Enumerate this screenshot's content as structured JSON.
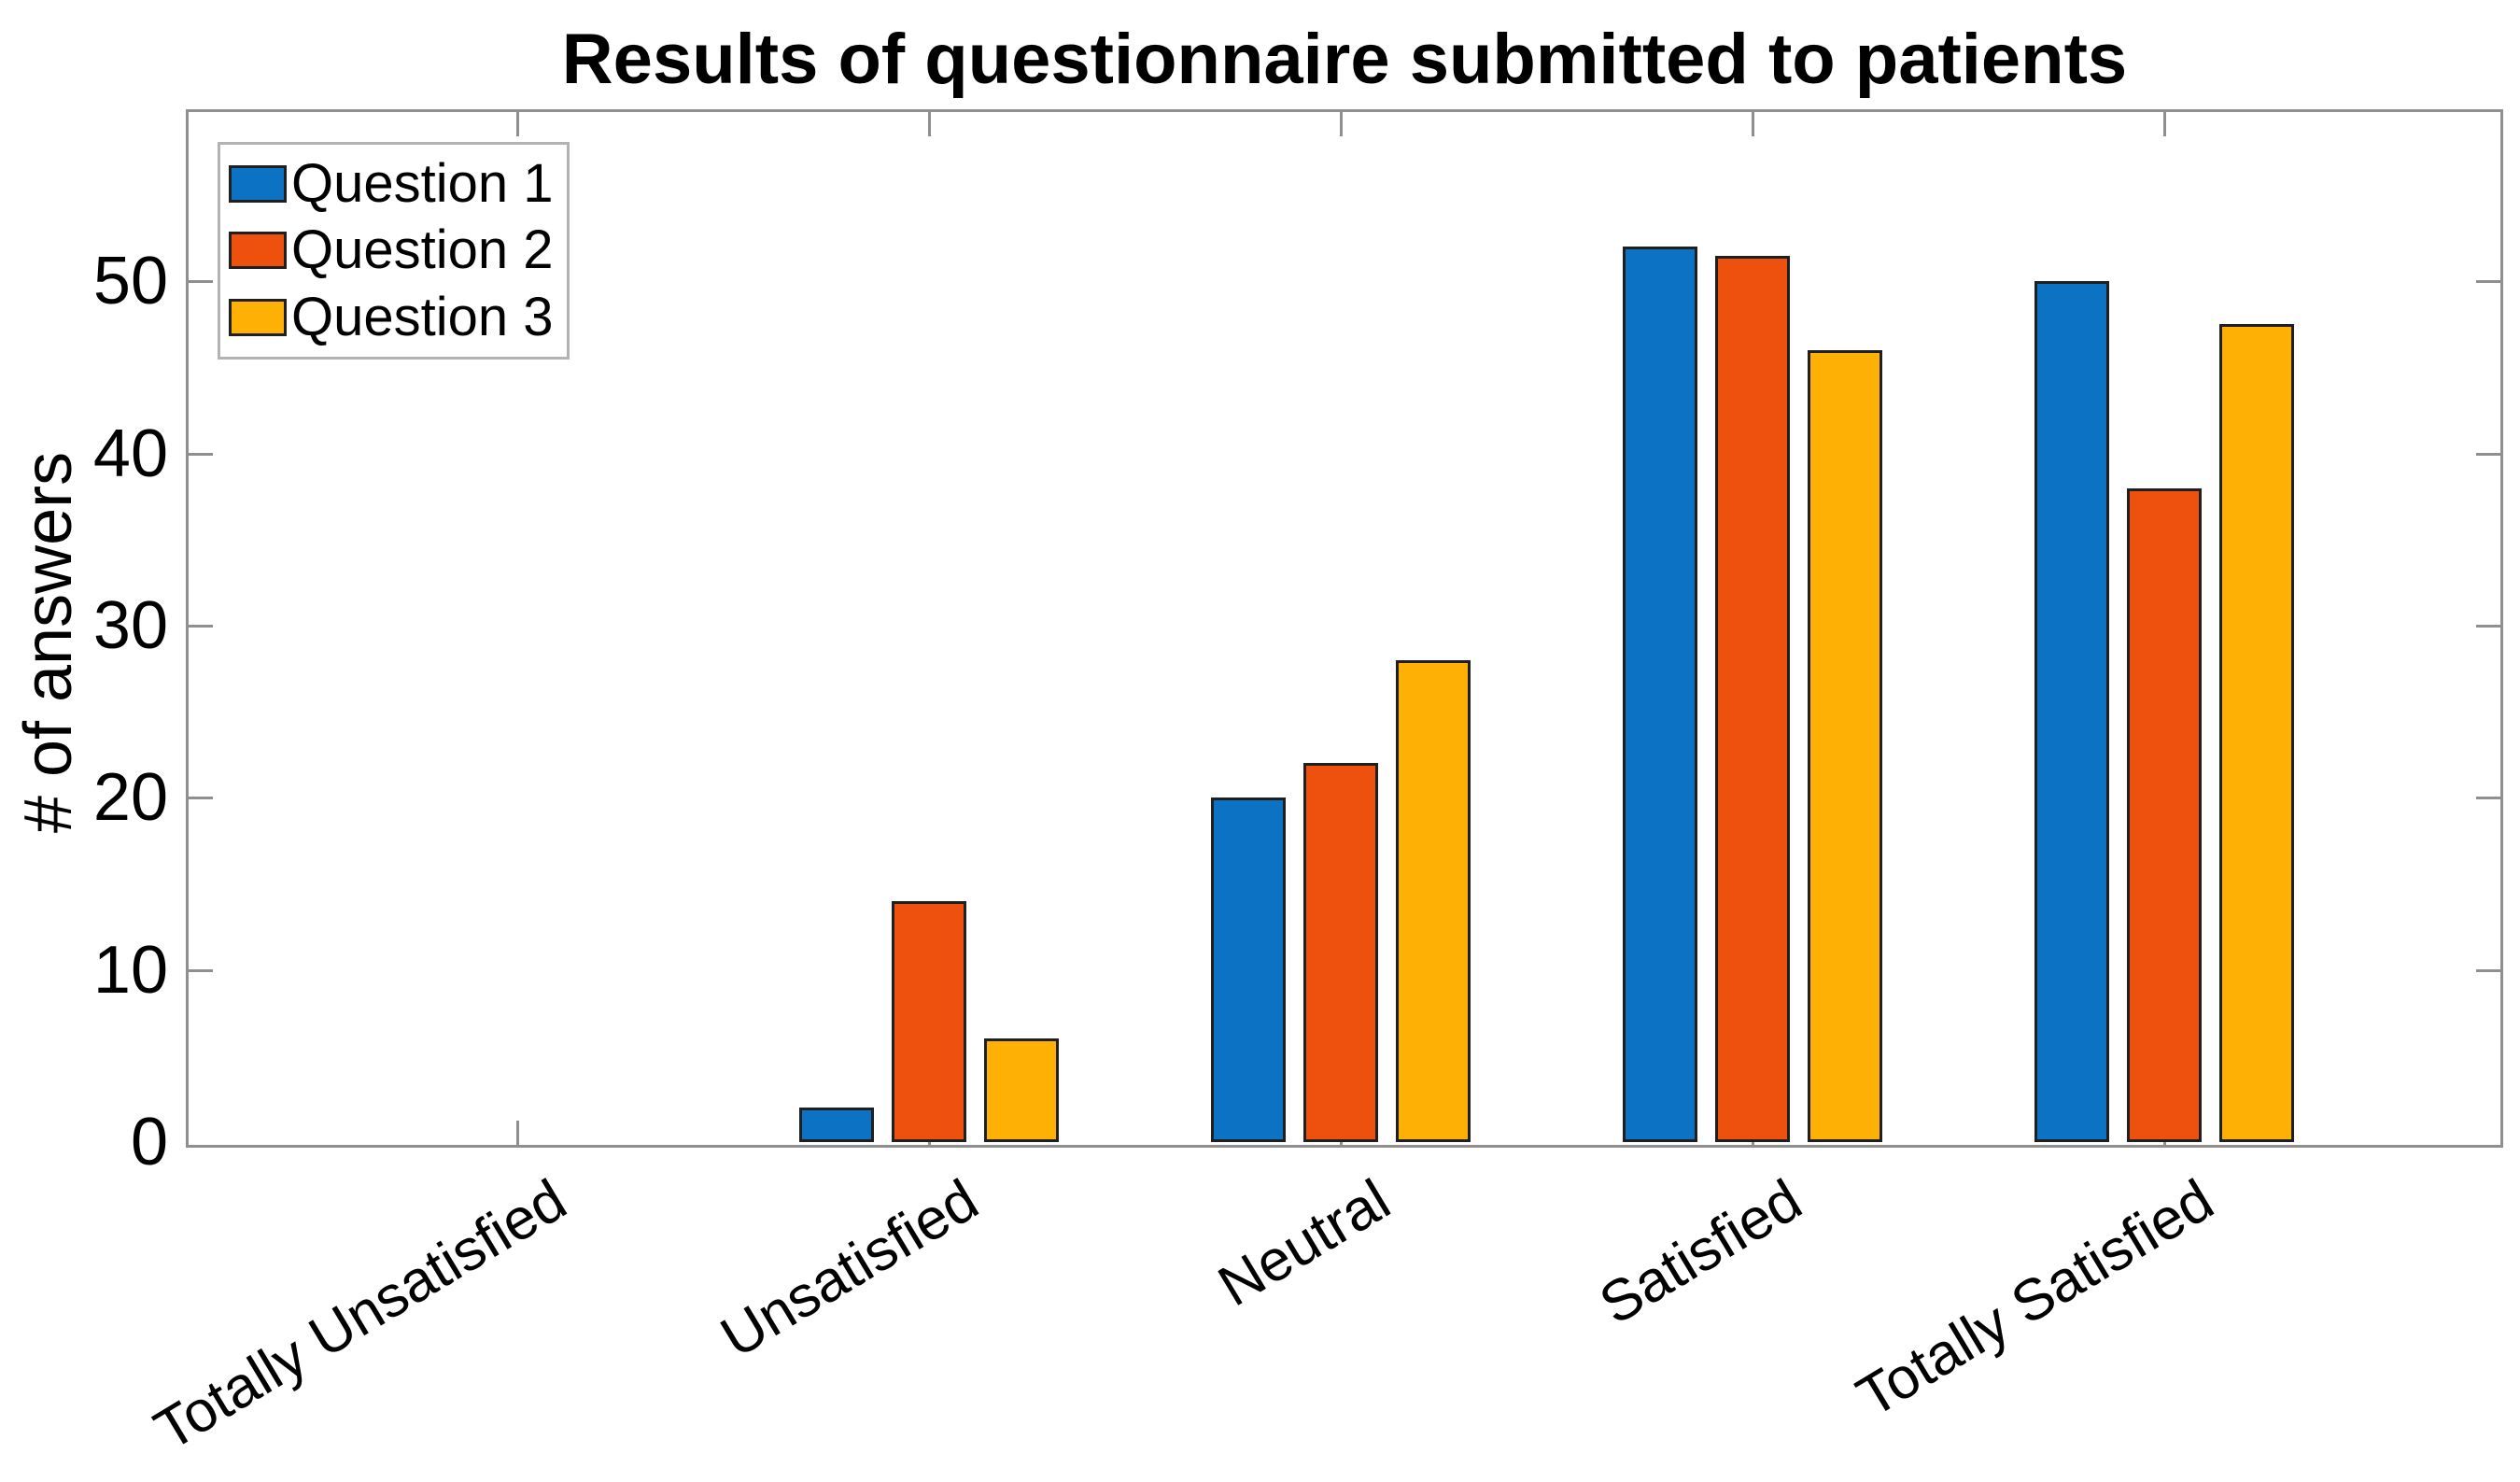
{
  "chart_data": {
    "type": "bar",
    "title": "Results of questionnaire submitted to patients",
    "xlabel": "",
    "ylabel": "# of answers",
    "categories": [
      "Totally Unsatisfied",
      "Unsatisfied",
      "Neutral",
      "Satisfied",
      "Totally Satisfied"
    ],
    "series": [
      {
        "name": "Question 1",
        "color": "#0b72c4",
        "values": [
          0,
          2,
          20,
          52,
          50
        ]
      },
      {
        "name": "Question 2",
        "color": "#ee510d",
        "values": [
          0,
          14,
          22,
          51.5,
          38
        ]
      },
      {
        "name": "Question 3",
        "color": "#ffb005",
        "values": [
          0,
          6,
          28,
          46,
          47.5
        ]
      }
    ],
    "yticks": [
      0,
      10,
      20,
      30,
      40,
      50
    ],
    "yticklabels": [
      "0",
      "10",
      "20",
      "30",
      "40",
      "50"
    ],
    "ylim": [
      0,
      60
    ],
    "grid": false,
    "legend_position": "top-left",
    "x_tick_label_rotation_deg": 31,
    "bar_edge_color": "#1f1f1f",
    "axis_color": "#8f8f8f",
    "text_color": "#000000",
    "background_color": "#ffffff"
  }
}
